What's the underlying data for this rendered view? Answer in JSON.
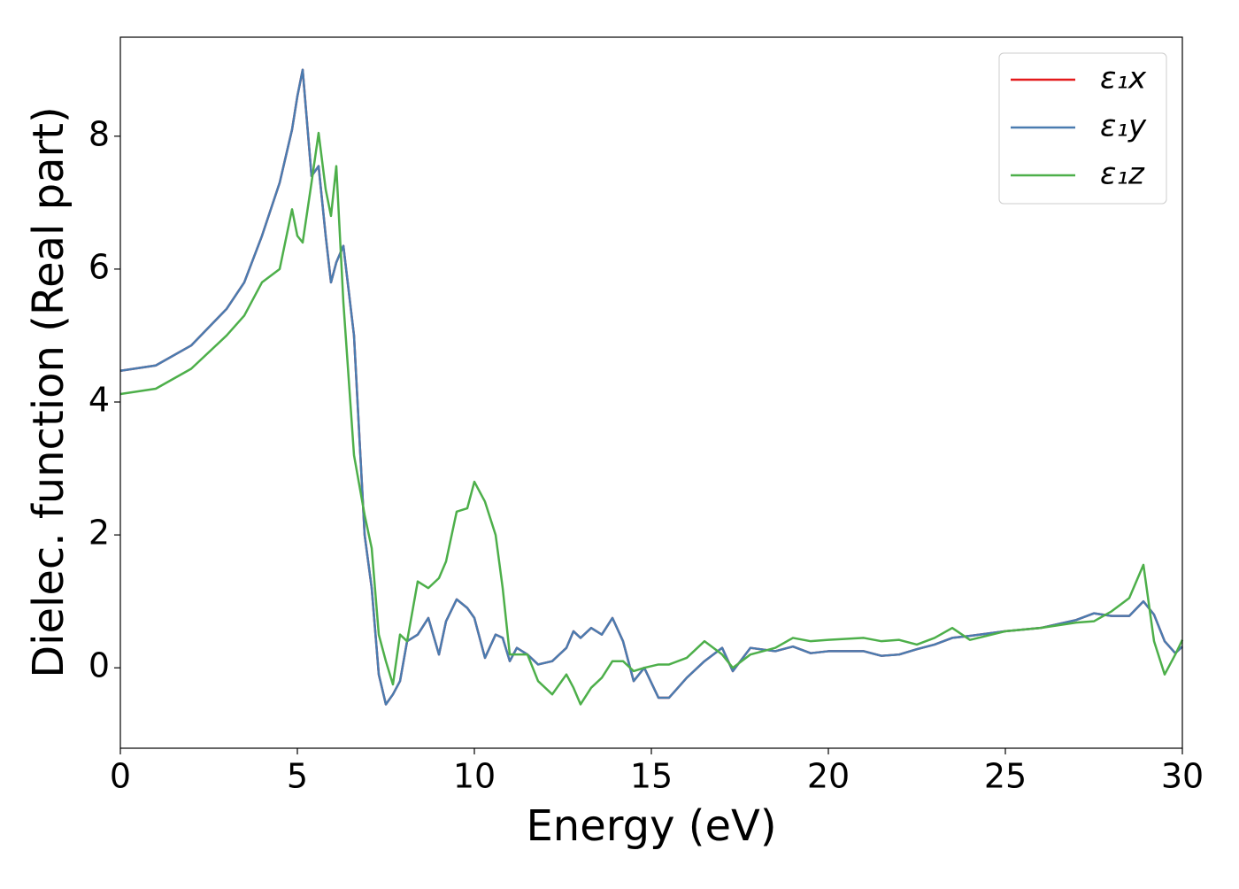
{
  "chart_data": {
    "type": "line",
    "xlabel": "Energy (eV)",
    "ylabel": "Dielec. function (Real part)",
    "xlim": [
      0,
      30
    ],
    "ylim": [
      -1.21,
      9.49
    ],
    "xticks": [
      0,
      5,
      10,
      15,
      20,
      25,
      30
    ],
    "yticks": [
      0,
      2,
      4,
      6,
      8
    ],
    "legend": "upper right",
    "x": [
      0,
      1,
      2,
      3,
      3.5,
      4,
      4.5,
      4.85,
      5,
      5.15,
      5.4,
      5.6,
      5.8,
      5.95,
      6.1,
      6.3,
      6.6,
      6.9,
      7.1,
      7.3,
      7.5,
      7.7,
      7.9,
      8.1,
      8.4,
      8.7,
      9.0,
      9.2,
      9.5,
      9.8,
      10.0,
      10.3,
      10.6,
      10.8,
      11.0,
      11.2,
      11.5,
      11.8,
      12.2,
      12.6,
      12.8,
      13.0,
      13.3,
      13.6,
      13.9,
      14.2,
      14.5,
      14.8,
      15.2,
      15.5,
      16,
      16.5,
      17,
      17.3,
      17.8,
      18.5,
      19,
      19.5,
      20,
      21,
      21.5,
      22,
      22.5,
      23,
      23.5,
      24,
      25,
      26,
      27,
      27.5,
      28,
      28.5,
      28.9,
      29.2,
      29.5,
      29.8,
      30
    ],
    "series": [
      {
        "name": "ε₁x",
        "color": "#e41a1c",
        "values": [
          4.47,
          4.55,
          4.85,
          5.4,
          5.8,
          6.5,
          7.3,
          8.1,
          8.6,
          9.0,
          7.4,
          7.55,
          6.5,
          5.8,
          6.1,
          6.35,
          5.0,
          2.0,
          1.2,
          -0.1,
          -0.55,
          -0.4,
          -0.2,
          0.4,
          0.5,
          0.75,
          0.2,
          0.7,
          1.03,
          0.9,
          0.75,
          0.15,
          0.5,
          0.45,
          0.1,
          0.3,
          0.2,
          0.05,
          0.1,
          0.3,
          0.55,
          0.45,
          0.6,
          0.5,
          0.75,
          0.4,
          -0.2,
          0.0,
          -0.45,
          -0.45,
          -0.15,
          0.1,
          0.3,
          -0.05,
          0.3,
          0.25,
          0.32,
          0.22,
          0.25,
          0.25,
          0.18,
          0.2,
          0.28,
          0.35,
          0.45,
          0.48,
          0.55,
          0.6,
          0.72,
          0.82,
          0.78,
          0.78,
          1.0,
          0.8,
          0.4,
          0.22,
          0.32
        ]
      },
      {
        "name": "ε₁y",
        "color": "#4a7cb0",
        "values": [
          4.47,
          4.55,
          4.85,
          5.4,
          5.8,
          6.5,
          7.3,
          8.1,
          8.6,
          9.0,
          7.4,
          7.55,
          6.5,
          5.8,
          6.1,
          6.35,
          5.0,
          2.0,
          1.2,
          -0.1,
          -0.55,
          -0.4,
          -0.2,
          0.4,
          0.5,
          0.75,
          0.2,
          0.7,
          1.03,
          0.9,
          0.75,
          0.15,
          0.5,
          0.45,
          0.1,
          0.3,
          0.2,
          0.05,
          0.1,
          0.3,
          0.55,
          0.45,
          0.6,
          0.5,
          0.75,
          0.4,
          -0.2,
          0.0,
          -0.45,
          -0.45,
          -0.15,
          0.1,
          0.3,
          -0.05,
          0.3,
          0.25,
          0.32,
          0.22,
          0.25,
          0.25,
          0.18,
          0.2,
          0.28,
          0.35,
          0.45,
          0.48,
          0.55,
          0.6,
          0.72,
          0.82,
          0.78,
          0.78,
          1.0,
          0.8,
          0.4,
          0.22,
          0.32
        ]
      },
      {
        "name": "ε₁z",
        "color": "#4daf4a",
        "values": [
          4.12,
          4.2,
          4.5,
          5.0,
          5.3,
          5.8,
          6.0,
          6.9,
          6.5,
          6.4,
          7.3,
          8.05,
          7.2,
          6.8,
          7.55,
          5.5,
          3.2,
          2.3,
          1.8,
          0.5,
          0.1,
          -0.25,
          0.5,
          0.4,
          1.3,
          1.2,
          1.35,
          1.6,
          2.35,
          2.4,
          2.8,
          2.5,
          2.0,
          1.2,
          0.2,
          0.2,
          0.2,
          -0.2,
          -0.4,
          -0.1,
          -0.3,
          -0.55,
          -0.3,
          -0.15,
          0.1,
          0.1,
          -0.05,
          0.0,
          0.05,
          0.05,
          0.15,
          0.4,
          0.2,
          0.0,
          0.2,
          0.3,
          0.45,
          0.4,
          0.42,
          0.45,
          0.4,
          0.42,
          0.35,
          0.45,
          0.6,
          0.42,
          0.55,
          0.6,
          0.68,
          0.7,
          0.85,
          1.05,
          1.55,
          0.4,
          -0.1,
          0.2,
          0.42
        ]
      }
    ]
  }
}
